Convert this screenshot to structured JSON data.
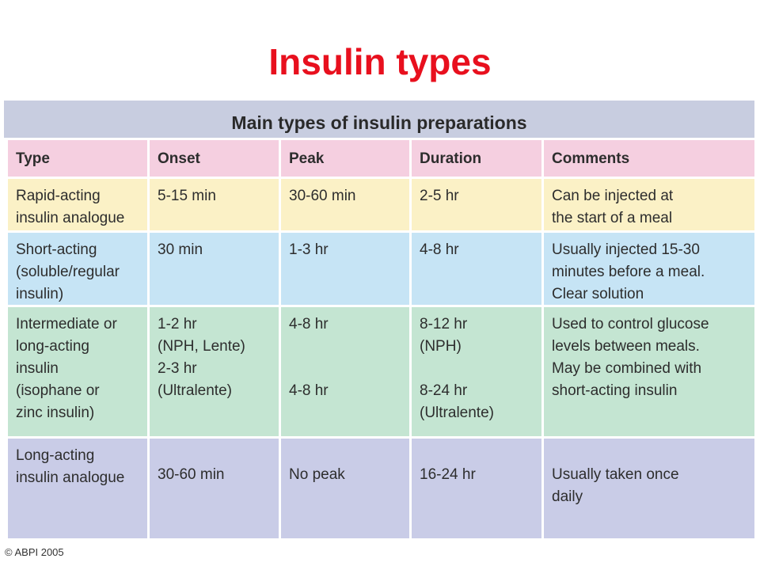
{
  "page_title": "Insulin types",
  "table": {
    "caption": "Main types of insulin preparations",
    "headers": [
      "Type",
      "Onset",
      "Peak",
      "Duration",
      "Comments"
    ],
    "rows": [
      [
        "Rapid-acting\ninsulin analogue",
        "5-15 min",
        "30-60 min",
        "2-5 hr",
        "Can be injected at\nthe start of a meal"
      ],
      [
        "Short-acting\n(soluble/regular\ninsulin)",
        "30 min",
        "1-3 hr",
        "4-8 hr",
        "Usually injected 15-30\nminutes before a meal.\nClear solution"
      ],
      [
        "Intermediate or\nlong-acting\ninsulin\n(isophane or\nzinc insulin)",
        "1-2 hr\n(NPH, Lente)\n2-3 hr\n(Ultralente)",
        "4-8 hr\n\n\n4-8 hr",
        "8-12 hr\n(NPH)\n\n8-24 hr\n(Ultralente)",
        "Used to control glucose\nlevels between meals.\nMay be combined with\nshort-acting insulin"
      ],
      [
        "Long-acting\ninsulin analogue",
        "30-60 min",
        "No peak",
        "16-24 hr",
        "Usually taken once\ndaily"
      ]
    ]
  },
  "copyright": "© ABPI 2005"
}
